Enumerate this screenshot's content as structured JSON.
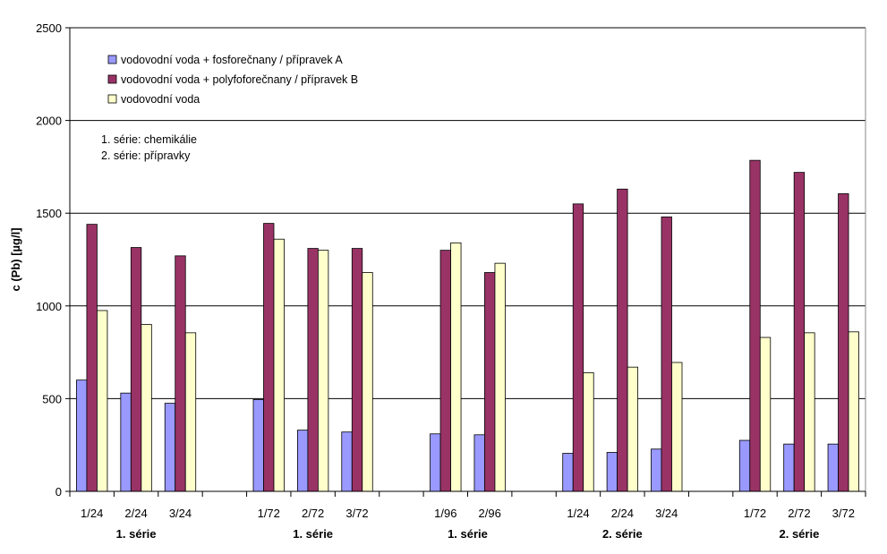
{
  "chart_data": {
    "type": "bar",
    "title": "",
    "xlabel": "",
    "ylabel": "c (Pb) [µg/l]",
    "ylim": [
      0,
      2500
    ],
    "yticks": [
      0,
      500,
      1000,
      1500,
      2000,
      2500
    ],
    "grid": true,
    "legend_position": "top-left",
    "colors": {
      "series_a": "#9999ff",
      "series_b": "#993366",
      "series_c": "#ffffcc",
      "outline": "#000000",
      "grid": "#000000"
    },
    "groups": [
      {
        "label": "1. série",
        "categories": [
          "1/24",
          "2/24",
          "3/24"
        ]
      },
      {
        "label": "1. série",
        "categories": [
          "1/72",
          "2/72",
          "3/72"
        ]
      },
      {
        "label": "1. série",
        "categories": [
          "1/96",
          "2/96"
        ]
      },
      {
        "label": "2. série",
        "categories": [
          "1/24",
          "2/24",
          "3/24"
        ]
      },
      {
        "label": "2. série",
        "categories": [
          "1/72",
          "2/72",
          "3/72"
        ]
      }
    ],
    "series": [
      {
        "name": "vodovodní voda + fosforečnany / přípravek A",
        "values": [
          600,
          530,
          475,
          495,
          330,
          320,
          310,
          305,
          205,
          210,
          228,
          275,
          255,
          255
        ]
      },
      {
        "name": "vodovodní voda + polyfoforečnany / přípravek B",
        "values": [
          1440,
          1315,
          1270,
          1445,
          1310,
          1310,
          1300,
          1180,
          1550,
          1630,
          1480,
          1785,
          1720,
          1605
        ]
      },
      {
        "name": "vodovodní voda",
        "values": [
          975,
          900,
          855,
          1360,
          1300,
          1180,
          1340,
          1230,
          640,
          670,
          695,
          830,
          855,
          860
        ]
      }
    ],
    "annotations": [
      "1. série: chemikálie",
      "2. série: přípravky"
    ]
  }
}
